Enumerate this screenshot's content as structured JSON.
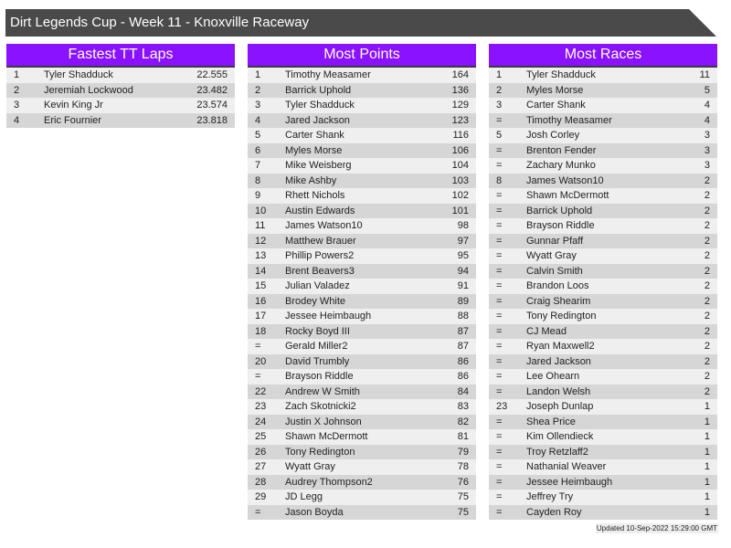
{
  "title": "Dirt Legends Cup - Week 11 - Knoxville Raceway",
  "colors": {
    "header_bg": "#8a12ff",
    "title_bg": "#4a4a4a",
    "row_light": "#efefef",
    "row_dark": "#d6d6d6"
  },
  "panels": [
    {
      "heading": "Fastest TT Laps",
      "rows": [
        [
          "1",
          "Tyler Shadduck",
          "22.555"
        ],
        [
          "2",
          "Jeremiah Lockwood",
          "23.482"
        ],
        [
          "3",
          "Kevin King Jr",
          "23.574"
        ],
        [
          "4",
          "Eric Fournier",
          "23.818"
        ]
      ]
    },
    {
      "heading": "Most Points",
      "rows": [
        [
          "1",
          "Timothy Measamer",
          "164"
        ],
        [
          "2",
          "Barrick Uphold",
          "136"
        ],
        [
          "3",
          "Tyler Shadduck",
          "129"
        ],
        [
          "4",
          "Jared Jackson",
          "123"
        ],
        [
          "5",
          "Carter Shank",
          "116"
        ],
        [
          "6",
          "Myles Morse",
          "106"
        ],
        [
          "7",
          "Mike Weisberg",
          "104"
        ],
        [
          "8",
          "Mike Ashby",
          "103"
        ],
        [
          "9",
          "Rhett Nichols",
          "102"
        ],
        [
          "10",
          "Austin Edwards",
          "101"
        ],
        [
          "11",
          "James Watson10",
          "98"
        ],
        [
          "12",
          "Matthew Brauer",
          "97"
        ],
        [
          "13",
          "Phillip Powers2",
          "95"
        ],
        [
          "14",
          "Brent Beavers3",
          "94"
        ],
        [
          "15",
          "Julian Valadez",
          "91"
        ],
        [
          "16",
          "Brodey White",
          "89"
        ],
        [
          "17",
          "Jessee Heimbaugh",
          "88"
        ],
        [
          "18",
          "Rocky Boyd III",
          "87"
        ],
        [
          "=",
          "Gerald Miller2",
          "87"
        ],
        [
          "20",
          "David Trumbly",
          "86"
        ],
        [
          "=",
          "Brayson Riddle",
          "86"
        ],
        [
          "22",
          "Andrew W Smith",
          "84"
        ],
        [
          "23",
          "Zach Skotnicki2",
          "83"
        ],
        [
          "24",
          "Justin X Johnson",
          "82"
        ],
        [
          "25",
          "Shawn McDermott",
          "81"
        ],
        [
          "26",
          "Tony Redington",
          "79"
        ],
        [
          "27",
          "Wyatt Gray",
          "78"
        ],
        [
          "28",
          "Audrey Thompson2",
          "76"
        ],
        [
          "29",
          "JD Legg",
          "75"
        ],
        [
          "=",
          "Jason Boyda",
          "75"
        ]
      ]
    },
    {
      "heading": "Most Races",
      "rows": [
        [
          "1",
          "Tyler Shadduck",
          "11"
        ],
        [
          "2",
          "Myles Morse",
          "5"
        ],
        [
          "3",
          "Carter Shank",
          "4"
        ],
        [
          "=",
          "Timothy Measamer",
          "4"
        ],
        [
          "5",
          "Josh Corley",
          "3"
        ],
        [
          "=",
          "Brenton Fender",
          "3"
        ],
        [
          "=",
          "Zachary Munko",
          "3"
        ],
        [
          "8",
          "James Watson10",
          "2"
        ],
        [
          "=",
          "Shawn McDermott",
          "2"
        ],
        [
          "=",
          "Barrick Uphold",
          "2"
        ],
        [
          "=",
          "Brayson Riddle",
          "2"
        ],
        [
          "=",
          "Gunnar Pfaff",
          "2"
        ],
        [
          "=",
          "Wyatt Gray",
          "2"
        ],
        [
          "=",
          "Calvin Smith",
          "2"
        ],
        [
          "=",
          "Brandon Loos",
          "2"
        ],
        [
          "=",
          "Craig Shearim",
          "2"
        ],
        [
          "=",
          "Tony Redington",
          "2"
        ],
        [
          "=",
          "CJ Mead",
          "2"
        ],
        [
          "=",
          "Ryan Maxwell2",
          "2"
        ],
        [
          "=",
          "Jared Jackson",
          "2"
        ],
        [
          "=",
          "Lee Ohearn",
          "2"
        ],
        [
          "=",
          "Landon Welsh",
          "2"
        ],
        [
          "23",
          "Joseph Dunlap",
          "1"
        ],
        [
          "=",
          "Shea Price",
          "1"
        ],
        [
          "=",
          "Kim Ollendieck",
          "1"
        ],
        [
          "=",
          "Troy Retzlaff2",
          "1"
        ],
        [
          "=",
          "Nathanial Weaver",
          "1"
        ],
        [
          "=",
          "Jessee Heimbaugh",
          "1"
        ],
        [
          "=",
          "Jeffrey Try",
          "1"
        ],
        [
          "=",
          "Cayden Roy",
          "1"
        ]
      ]
    }
  ],
  "footer": "Updated 10-Sep-2022 15:29:00 GMT"
}
